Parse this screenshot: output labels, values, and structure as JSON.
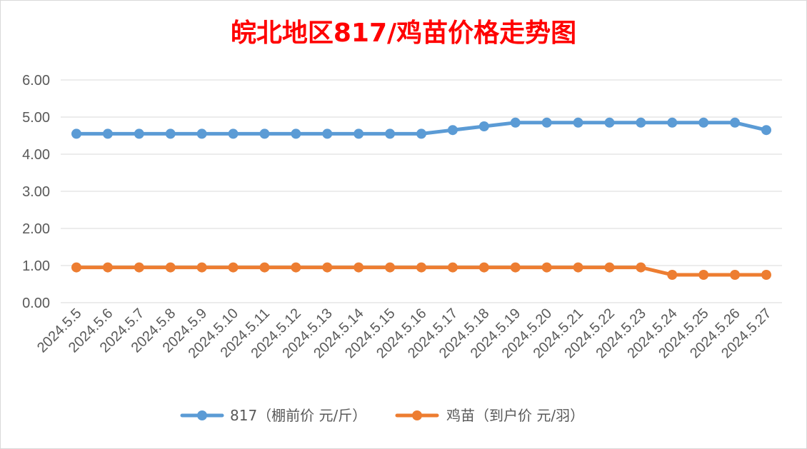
{
  "chart_data": {
    "type": "line",
    "title": "皖北地区817/鸡苗价格走势图",
    "title_color": "#ff0000",
    "categories": [
      "2024.5.5",
      "2024.5.6",
      "2024.5.7",
      "2024.5.8",
      "2024.5.9",
      "2024.5.10",
      "2024.5.11",
      "2024.5.12",
      "2024.5.13",
      "2024.5.14",
      "2024.5.15",
      "2024.5.16",
      "2024.5.17",
      "2024.5.18",
      "2024.5.19",
      "2024.5.20",
      "2024.5.21",
      "2024.5.22",
      "2024.5.23",
      "2024.5.24",
      "2024.5.25",
      "2024.5.26",
      "2024.5.27"
    ],
    "yticks": [
      "0.00",
      "1.00",
      "2.00",
      "3.00",
      "4.00",
      "5.00",
      "6.00"
    ],
    "ylim": [
      0,
      6
    ],
    "grid": true,
    "legend_position": "bottom",
    "series": [
      {
        "name": "817（棚前价 元/斤）",
        "color": "#5b9bd5",
        "values": [
          4.55,
          4.55,
          4.55,
          4.55,
          4.55,
          4.55,
          4.55,
          4.55,
          4.55,
          4.55,
          4.55,
          4.55,
          4.65,
          4.75,
          4.85,
          4.85,
          4.85,
          4.85,
          4.85,
          4.85,
          4.85,
          4.85,
          4.65
        ]
      },
      {
        "name": "鸡苗（到户价 元/羽）",
        "color": "#ed7d31",
        "values": [
          0.95,
          0.95,
          0.95,
          0.95,
          0.95,
          0.95,
          0.95,
          0.95,
          0.95,
          0.95,
          0.95,
          0.95,
          0.95,
          0.95,
          0.95,
          0.95,
          0.95,
          0.95,
          0.95,
          0.75,
          0.75,
          0.75,
          0.75
        ]
      }
    ]
  }
}
